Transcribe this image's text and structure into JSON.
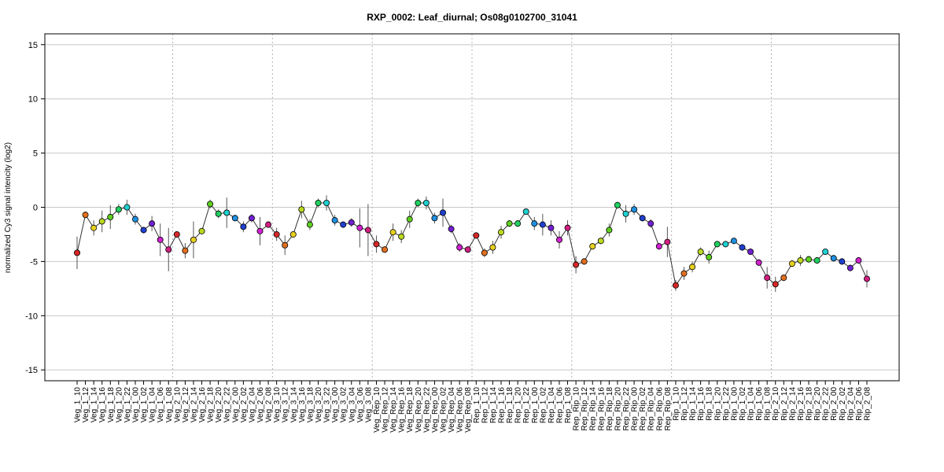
{
  "chart_data": {
    "type": "line",
    "title": "RXP_0002: Leaf_diurnal; Os08g0102700_31041",
    "xlabel": "",
    "ylabel": "normalized Cy3 signal intencity (log2)",
    "ylim": [
      -16,
      16
    ],
    "yticks": [
      -15,
      -10,
      -5,
      0,
      5,
      10,
      15
    ],
    "grid": true,
    "legend": "none",
    "line_color": "#333333",
    "categories": [
      "Veg_1_10",
      "Veg_1_12",
      "Veg_1_14",
      "Veg_1_16",
      "Veg_1_18",
      "Veg_1_20",
      "Veg_1_22",
      "Veg_1_00",
      "Veg_1_02",
      "Veg_1_04",
      "Veg_1_06",
      "Veg_1_08",
      "Veg_2_10",
      "Veg_2_12",
      "Veg_2_14",
      "Veg_2_16",
      "Veg_2_18",
      "Veg_2_20",
      "Veg_2_22",
      "Veg_2_00",
      "Veg_2_02",
      "Veg_2_04",
      "Veg_2_06",
      "Veg_2_08",
      "Veg_3_10",
      "Veg_3_12",
      "Veg_3_14",
      "Veg_3_16",
      "Veg_3_18",
      "Veg_3_20",
      "Veg_3_22",
      "Veg_3_00",
      "Veg_3_02",
      "Veg_3_04",
      "Veg_3_06",
      "Veg_3_08",
      "Veg_Rep_10",
      "Veg_Rep_12",
      "Veg_Rep_14",
      "Veg_Rep_16",
      "Veg_Rep_18",
      "Veg_Rep_20",
      "Veg_Rep_22",
      "Veg_Rep_00",
      "Veg_Rep_02",
      "Veg_Rep_04",
      "Veg_Rep_06",
      "Veg_Rep_08",
      "Rep_1_10",
      "Rep_1_12",
      "Rep_1_14",
      "Rep_1_16",
      "Rep_1_18",
      "Rep_1_20",
      "Rep_1_22",
      "Rep_1_00",
      "Rep_1_02",
      "Rep_1_04",
      "Rep_1_06",
      "Rep_1_08",
      "Rep_Rip_10",
      "Rep_Rip_12",
      "Rep_Rip_14",
      "Rep_Rip_16",
      "Rep_Rip_18",
      "Rep_Rip_20",
      "Rep_Rip_22",
      "Rep_Rip_00",
      "Rep_Rip_02",
      "Rep_Rip_04",
      "Rep_Rip_06",
      "Rep_Rip_08",
      "Rip_1_10",
      "Rip_1_12",
      "Rip_1_14",
      "Rip_1_16",
      "Rip_1_18",
      "Rip_1_20",
      "Rip_1_22",
      "Rip_1_00",
      "Rip_1_02",
      "Rip_1_04",
      "Rip_1_06",
      "Rip_1_08",
      "Rip_2_10",
      "Rip_2_12",
      "Rip_2_14",
      "Rip_2_16",
      "Rip_2_18",
      "Rip_2_20",
      "Rip_2_22",
      "Rip_2_00",
      "Rip_2_02",
      "Rip_2_04",
      "Rip_2_06",
      "Rip_2_08"
    ],
    "values": [
      -4.2,
      -0.7,
      -1.9,
      -1.3,
      -0.9,
      -0.2,
      0.0,
      -1.1,
      -2.1,
      -1.5,
      -3.0,
      -3.9,
      -2.5,
      -4.0,
      -3.0,
      -2.2,
      0.3,
      -0.6,
      -0.5,
      -1.0,
      -1.8,
      -1.0,
      -2.2,
      -1.6,
      -2.5,
      -3.5,
      -2.5,
      -0.2,
      -1.6,
      0.4,
      0.4,
      -1.2,
      -1.6,
      -1.4,
      -1.9,
      -2.1,
      -3.4,
      -3.9,
      -2.3,
      -2.7,
      -1.1,
      0.4,
      0.4,
      -1.0,
      -0.5,
      -2.0,
      -3.7,
      -3.9,
      -2.6,
      -4.2,
      -3.7,
      -2.3,
      -1.5,
      -1.5,
      -0.4,
      -1.5,
      -1.6,
      -1.9,
      -3.0,
      -1.9,
      -5.3,
      -5.0,
      -3.6,
      -3.1,
      -2.1,
      0.2,
      -0.6,
      -0.2,
      -1.0,
      -1.5,
      -3.6,
      -3.2,
      -7.2,
      -6.1,
      -5.5,
      -4.1,
      -4.6,
      -3.4,
      -3.4,
      -3.1,
      -3.7,
      -4.1,
      -5.1,
      -6.5,
      -7.1,
      -6.5,
      -5.2,
      -4.9,
      -4.8,
      -4.9,
      -4.1,
      -4.7,
      -5.0,
      -5.6,
      -4.9,
      -6.6
    ],
    "errors": [
      1.5,
      0.3,
      0.7,
      1.0,
      1.1,
      0.5,
      0.7,
      0.5,
      0.3,
      0.7,
      1.5,
      2.0,
      0.3,
      0.7,
      1.7,
      0.3,
      0.4,
      0.4,
      1.4,
      0.3,
      0.5,
      0.4,
      1.3,
      0.3,
      0.6,
      0.9,
      0.3,
      0.8,
      0.5,
      0.4,
      0.7,
      0.5,
      0.3,
      0.4,
      1.8,
      2.4,
      0.8,
      0.3,
      0.8,
      0.6,
      0.8,
      0.4,
      0.6,
      0.5,
      1.3,
      0.4,
      0.4,
      0.3,
      0.3,
      0.4,
      0.6,
      0.6,
      0.3,
      0.3,
      0.3,
      0.6,
      1.0,
      0.7,
      0.8,
      0.7,
      0.8,
      0.3,
      0.3,
      0.3,
      0.6,
      0.3,
      0.8,
      0.5,
      0.3,
      0.4,
      0.3,
      1.4,
      0.5,
      0.6,
      0.5,
      0.4,
      0.6,
      0.3,
      0.3,
      0.3,
      0.3,
      0.3,
      0.3,
      1.0,
      0.7,
      0.3,
      0.3,
      0.5,
      0.3,
      0.3,
      0.3,
      0.3,
      0.3,
      0.3,
      0.3,
      0.8
    ],
    "point_colors": [
      "#d62728",
      "#e07020",
      "#e8d020",
      "#bcd820",
      "#5ed020",
      "#20d060",
      "#20d0d0",
      "#2090e0",
      "#2040d0",
      "#7020d0",
      "#d020d0",
      "#d02080"
    ],
    "group_separators_after": [
      "Veg_1_08",
      "Veg_2_08",
      "Veg_3_08",
      "Veg_Rep_08",
      "Rep_1_08",
      "Rep_Rip_08",
      "Rip_1_08"
    ]
  }
}
